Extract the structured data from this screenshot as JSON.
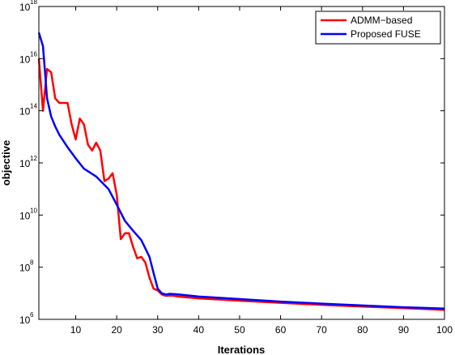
{
  "chart_data": {
    "type": "line",
    "title": "",
    "xlabel": "Iterations",
    "ylabel": "objective",
    "yscale": "log",
    "xlim": [
      1,
      100
    ],
    "ylim": [
      1000000.0,
      1e+18
    ],
    "x_ticks": [
      10,
      20,
      30,
      40,
      50,
      60,
      70,
      80,
      90,
      100
    ],
    "y_ticks": [
      {
        "value": 1000000.0,
        "base": "10",
        "exp": "6"
      },
      {
        "value": 100000000.0,
        "base": "10",
        "exp": "8"
      },
      {
        "value": 10000000000.0,
        "base": "10",
        "exp": "10"
      },
      {
        "value": 1000000000000.0,
        "base": "10",
        "exp": "12"
      },
      {
        "value": 100000000000000.0,
        "base": "10",
        "exp": "14"
      },
      {
        "value": 1e+16,
        "base": "10",
        "exp": "16"
      },
      {
        "value": 1e+18,
        "base": "10",
        "exp": "18"
      }
    ],
    "grid": false,
    "legend_position": "top-right",
    "series": [
      {
        "name": "ADMM−based",
        "color": "#ff0000",
        "x": [
          1,
          2,
          3,
          4,
          5,
          6,
          7,
          8,
          9,
          10,
          11,
          12,
          13,
          14,
          15,
          16,
          17,
          18,
          19,
          20,
          21,
          22,
          23,
          24,
          25,
          26,
          27,
          28,
          29,
          30,
          31,
          32,
          33,
          34,
          35,
          40,
          50,
          60,
          70,
          80,
          90,
          100
        ],
        "y": [
          1e+16,
          100000000000000.0,
          4000000000000000.0,
          3000000000000000.0,
          300000000000000.0,
          200000000000000.0,
          200000000000000.0,
          200000000000000.0,
          30000000000000.0,
          8000000000000.0,
          50000000000000.0,
          30000000000000.0,
          5000000000000.0,
          3000000000000.0,
          6000000000000.0,
          3000000000000.0,
          200000000000.0,
          250000000000.0,
          400000000000.0,
          60000000000.0,
          1200000000.0,
          2000000000.0,
          2000000000.0,
          600000000.0,
          220000000.0,
          250000000.0,
          150000000.0,
          40000000.0,
          15000000.0,
          13000000.0,
          9000000.0,
          8000000.0,
          8200000.0,
          8000000.0,
          7500000.0,
          6400000.0,
          5200000.0,
          4300000.0,
          3600000.0,
          3100000.0,
          2700000.0,
          2300000.0
        ]
      },
      {
        "name": "Proposed FUSE",
        "color": "#0000ff",
        "x": [
          1,
          2,
          3,
          4,
          5,
          6,
          8,
          10,
          12,
          15,
          18,
          20,
          22,
          24,
          26,
          28,
          29,
          30,
          31,
          32,
          33,
          35,
          40,
          50,
          60,
          70,
          80,
          90,
          100
        ],
        "y": [
          1e+17,
          3e+16,
          300000000000000.0,
          60000000000000.0,
          25000000000000.0,
          12000000000000.0,
          4000000000000.0,
          1500000000000.0,
          600000000000.0,
          300000000000.0,
          100000000000.0,
          25000000000.0,
          6000000000.0,
          2500000000.0,
          1100000000.0,
          250000000.0,
          60000000.0,
          15000000.0,
          10000000.0,
          9000000.0,
          9500000.0,
          9000000.0,
          7500000.0,
          6000000.0,
          4800000.0,
          4000000.0,
          3400000.0,
          2900000.0,
          2600000.0
        ]
      }
    ]
  }
}
